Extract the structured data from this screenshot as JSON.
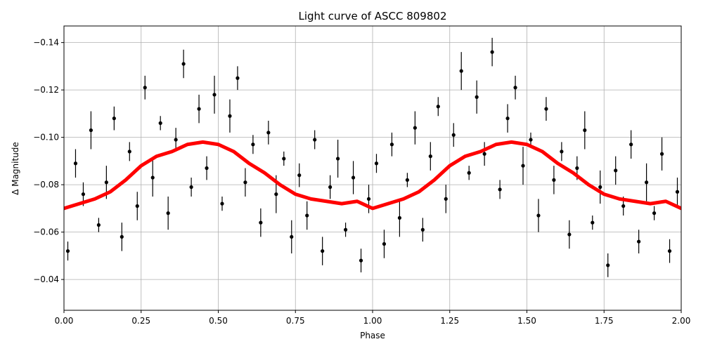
{
  "chart_data": {
    "type": "scatter",
    "title": "Light curve of ASCC 809802",
    "xlabel": "Phase",
    "ylabel": "Δ Magnitude",
    "xlim": [
      0,
      2
    ],
    "ylim": [
      -0.027,
      -0.147
    ],
    "xticks": [
      {
        "value": 0,
        "label": "0.00"
      },
      {
        "value": 0.25,
        "label": "0.25"
      },
      {
        "value": 0.5,
        "label": "0.50"
      },
      {
        "value": 0.75,
        "label": "0.75"
      },
      {
        "value": 1,
        "label": "1.00"
      },
      {
        "value": 1.25,
        "label": "1.25"
      },
      {
        "value": 1.5,
        "label": "1.50"
      },
      {
        "value": 1.75,
        "label": "1.75"
      },
      {
        "value": 2,
        "label": "2.00"
      }
    ],
    "yticks": [
      {
        "value": -0.14,
        "label": "−0.14"
      },
      {
        "value": -0.12,
        "label": "−0.12"
      },
      {
        "value": -0.1,
        "label": "−0.10"
      },
      {
        "value": -0.08,
        "label": "−0.08"
      },
      {
        "value": -0.06,
        "label": "−0.06"
      },
      {
        "value": -0.04,
        "label": "−0.04"
      }
    ],
    "grid": true,
    "series": [
      {
        "type": "errorbar",
        "color": "#000000",
        "x": [
          0.0125,
          0.0375,
          0.0625,
          0.0875,
          0.1125,
          0.1375,
          0.1625,
          0.1875,
          0.2125,
          0.2375,
          0.2625,
          0.2875,
          0.3125,
          0.3375,
          0.3625,
          0.3875,
          0.4125,
          0.4375,
          0.4625,
          0.4875,
          0.5125,
          0.5375,
          0.5625,
          0.5875,
          0.6125,
          0.6375,
          0.6625,
          0.6875,
          0.7125,
          0.7375,
          0.7625,
          0.7875,
          0.8125,
          0.8375,
          0.8625,
          0.8875,
          0.9125,
          0.9375,
          0.9625,
          0.9875,
          1.0125,
          1.0375,
          1.0625,
          1.0875,
          1.1125,
          1.1375,
          1.1625,
          1.1875,
          1.2125,
          1.2375,
          1.2625,
          1.2875,
          1.3125,
          1.3375,
          1.3625,
          1.3875,
          1.4125,
          1.4375,
          1.4625,
          1.4875,
          1.5125,
          1.5375,
          1.5625,
          1.5875,
          1.6125,
          1.6375,
          1.6625,
          1.6875,
          1.7125,
          1.7375,
          1.7625,
          1.7875,
          1.8125,
          1.8375,
          1.8625,
          1.8875,
          1.9125,
          1.9375,
          1.9625,
          1.9875
        ],
        "values": [
          -0.052,
          -0.089,
          -0.076,
          -0.103,
          -0.063,
          -0.081,
          -0.108,
          -0.058,
          -0.094,
          -0.071,
          -0.121,
          -0.083,
          -0.106,
          -0.068,
          -0.099,
          -0.131,
          -0.079,
          -0.112,
          -0.087,
          -0.118,
          -0.072,
          -0.109,
          -0.125,
          -0.081,
          -0.097,
          -0.064,
          -0.102,
          -0.076,
          -0.091,
          -0.058,
          -0.084,
          -0.067,
          -0.099,
          -0.052,
          -0.079,
          -0.091,
          -0.061,
          -0.083,
          -0.048,
          -0.074,
          -0.089,
          -0.055,
          -0.097,
          -0.066,
          -0.082,
          -0.104,
          -0.061,
          -0.092,
          -0.113,
          -0.074,
          -0.101,
          -0.128,
          -0.085,
          -0.117,
          -0.093,
          -0.136,
          -0.078,
          -0.108,
          -0.121,
          -0.088,
          -0.099,
          -0.067,
          -0.112,
          -0.082,
          -0.094,
          -0.059,
          -0.087,
          -0.103,
          -0.064,
          -0.079,
          -0.046,
          -0.086,
          -0.071,
          -0.097,
          -0.056,
          -0.081,
          -0.068,
          -0.093,
          -0.052,
          -0.077
        ],
        "errors": [
          0.004,
          0.006,
          0.005,
          0.008,
          0.003,
          0.007,
          0.005,
          0.006,
          0.004,
          0.006,
          0.005,
          0.008,
          0.003,
          0.007,
          0.005,
          0.006,
          0.004,
          0.006,
          0.005,
          0.008,
          0.003,
          0.007,
          0.005,
          0.006,
          0.004,
          0.006,
          0.005,
          0.008,
          0.003,
          0.007,
          0.005,
          0.006,
          0.004,
          0.006,
          0.005,
          0.008,
          0.003,
          0.007,
          0.005,
          0.006,
          0.004,
          0.006,
          0.005,
          0.008,
          0.003,
          0.007,
          0.005,
          0.006,
          0.004,
          0.006,
          0.005,
          0.008,
          0.003,
          0.007,
          0.005,
          0.006,
          0.004,
          0.006,
          0.005,
          0.008,
          0.003,
          0.007,
          0.005,
          0.006,
          0.004,
          0.006,
          0.005,
          0.008,
          0.003,
          0.007,
          0.005,
          0.006,
          0.004,
          0.006,
          0.005,
          0.008,
          0.003,
          0.007,
          0.005,
          0.006
        ]
      },
      {
        "type": "line",
        "color": "#ff0000",
        "x": [
          0,
          0.05,
          0.1,
          0.15,
          0.2,
          0.25,
          0.3,
          0.35,
          0.4,
          0.45,
          0.5,
          0.55,
          0.6,
          0.65,
          0.7,
          0.75,
          0.8,
          0.85,
          0.9,
          0.95,
          1,
          1.05,
          1.1,
          1.15,
          1.2,
          1.25,
          1.3,
          1.35,
          1.4,
          1.45,
          1.5,
          1.55,
          1.6,
          1.65,
          1.7,
          1.75,
          1.8,
          1.85,
          1.9,
          1.95,
          2
        ],
        "values": [
          -0.07,
          -0.072,
          -0.074,
          -0.077,
          -0.082,
          -0.088,
          -0.092,
          -0.094,
          -0.097,
          -0.098,
          -0.097,
          -0.094,
          -0.089,
          -0.085,
          -0.08,
          -0.076,
          -0.074,
          -0.073,
          -0.072,
          -0.073,
          -0.07,
          -0.072,
          -0.074,
          -0.077,
          -0.082,
          -0.088,
          -0.092,
          -0.094,
          -0.097,
          -0.098,
          -0.097,
          -0.094,
          -0.089,
          -0.085,
          -0.08,
          -0.076,
          -0.074,
          -0.073,
          -0.072,
          -0.073,
          -0.07
        ]
      }
    ]
  }
}
